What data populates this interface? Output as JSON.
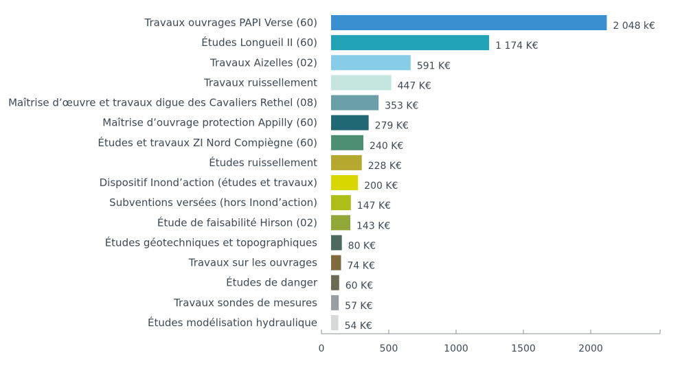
{
  "chart_data": {
    "type": "bar",
    "orientation": "horizontal",
    "categories": [
      "Travaux ouvrages PAPI Verse (60)",
      "Études Longueil II (60)",
      "Travaux Aizelles (02)",
      "Travaux ruissellement",
      "Maîtrise d’œuvre et travaux digue des Cavaliers Rethel (08)",
      "Maîtrise d’ouvrage protection Appilly (60)",
      "Études et travaux ZI Nord Compiègne (60)",
      "Études ruissellement",
      "Dispositif Inond’action (études et travaux)",
      "Subventions versées (hors Inond’action)",
      "Étude de faisabilité Hirson (02)",
      "Études géotechniques et topographiques",
      "Travaux sur les ouvrages",
      "Études de danger",
      "Travaux sondes de mesures",
      "Études modélisation hydraulique"
    ],
    "values": [
      2048,
      1174,
      591,
      447,
      353,
      279,
      240,
      228,
      200,
      147,
      143,
      80,
      74,
      60,
      57,
      54
    ],
    "value_labels": [
      "2 048 k€",
      "1 174 K€",
      "591 K€",
      "447 K€",
      "353 K€",
      "279 K€",
      "240 K€",
      "228 K€",
      "200 K€",
      "147 K€",
      "143 K€",
      "80 K€",
      "74 K€",
      "60 K€",
      "57 K€",
      "54 K€"
    ],
    "colors": [
      "#3a8fd1",
      "#21a3b5",
      "#87cde8",
      "#c5e6df",
      "#6a9fa8",
      "#1f6874",
      "#4d8f72",
      "#b5a82e",
      "#d8d800",
      "#aebe18",
      "#8fa838",
      "#4d6a60",
      "#7f6b3e",
      "#6b6a52",
      "#9a9fa3",
      "#d7d8d8"
    ],
    "xlim": [
      0,
      2450
    ],
    "xticks": [
      0,
      500,
      1000,
      1500,
      2000
    ],
    "title": "",
    "xlabel": "",
    "ylabel": ""
  }
}
